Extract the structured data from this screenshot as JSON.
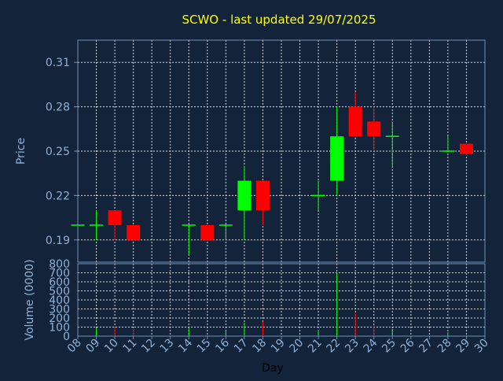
{
  "colors": {
    "background": "#13243a",
    "axis": "#6e8fb5",
    "grid": "#d8d8d8",
    "title": "#ffff00",
    "label": "#8fb0d6",
    "up": "#00ff00",
    "down": "#ff0000"
  },
  "chart_data": {
    "type": "candlestick",
    "title": "SCWO - last updated 29/07/2025",
    "xlabel": "Day",
    "ylabel": "Price",
    "volume_label": "Volume (0000)",
    "x_ticks": [
      "08",
      "09",
      "10",
      "11",
      "12",
      "13",
      "14",
      "15",
      "16",
      "17",
      "18",
      "19",
      "20",
      "21",
      "22",
      "23",
      "24",
      "25",
      "26",
      "27",
      "28",
      "29",
      "30"
    ],
    "price_ylim": [
      0.175,
      0.325
    ],
    "price_ticks": [
      "0.31",
      "0.28",
      "0.25",
      "0.22",
      "0.19"
    ],
    "price_tick_values": [
      0.31,
      0.28,
      0.25,
      0.22,
      0.19
    ],
    "volume_ylim": [
      0,
      800
    ],
    "volume_ticks": [
      "800",
      "700",
      "600",
      "500",
      "400",
      "300",
      "200",
      "100",
      "0"
    ],
    "volume_tick_values": [
      800,
      700,
      600,
      500,
      400,
      300,
      200,
      100,
      0
    ],
    "candles": [
      {
        "day": 8,
        "open": 0.2,
        "high": 0.2,
        "low": 0.2,
        "close": 0.2,
        "volume": 5
      },
      {
        "day": 9,
        "open": 0.2,
        "high": 0.21,
        "low": 0.19,
        "close": 0.2,
        "volume": 90
      },
      {
        "day": 10,
        "open": 0.21,
        "high": 0.21,
        "low": 0.19,
        "close": 0.2,
        "volume": 100
      },
      {
        "day": 11,
        "open": 0.2,
        "high": 0.2,
        "low": 0.19,
        "close": 0.19,
        "volume": 80
      },
      {
        "day": 14,
        "open": 0.2,
        "high": 0.2,
        "low": 0.18,
        "close": 0.2,
        "volume": 90
      },
      {
        "day": 15,
        "open": 0.2,
        "high": 0.2,
        "low": 0.19,
        "close": 0.19,
        "volume": 20
      },
      {
        "day": 16,
        "open": 0.2,
        "high": 0.2,
        "low": 0.19,
        "close": 0.2,
        "volume": 60
      },
      {
        "day": 17,
        "open": 0.21,
        "high": 0.24,
        "low": 0.19,
        "close": 0.23,
        "volume": 150
      },
      {
        "day": 18,
        "open": 0.23,
        "high": 0.23,
        "low": 0.2,
        "close": 0.21,
        "volume": 160
      },
      {
        "day": 21,
        "open": 0.22,
        "high": 0.23,
        "low": 0.21,
        "close": 0.22,
        "volume": 70
      },
      {
        "day": 22,
        "open": 0.23,
        "high": 0.28,
        "low": 0.22,
        "close": 0.26,
        "volume": 700
      },
      {
        "day": 23,
        "open": 0.28,
        "high": 0.29,
        "low": 0.26,
        "close": 0.26,
        "volume": 250
      },
      {
        "day": 24,
        "open": 0.27,
        "high": 0.28,
        "low": 0.25,
        "close": 0.26,
        "volume": 120
      },
      {
        "day": 25,
        "open": 0.26,
        "high": 0.27,
        "low": 0.24,
        "close": 0.26,
        "volume": 80
      },
      {
        "day": 28,
        "open": 0.25,
        "high": 0.26,
        "low": 0.25,
        "close": 0.25,
        "volume": 40
      },
      {
        "day": 29,
        "open": 0.255,
        "high": 0.255,
        "low": 0.247,
        "close": 0.248,
        "volume": 20
      }
    ]
  }
}
